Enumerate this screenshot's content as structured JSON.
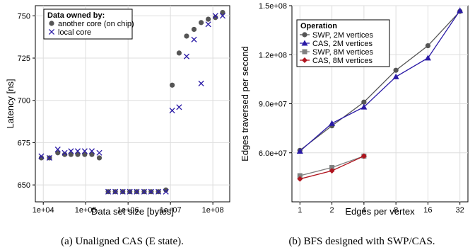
{
  "chart_data": [
    {
      "type": "scatter",
      "caption": "(a) Unaligned CAS (E state).",
      "xlabel": "Data set size [bytes]",
      "ylabel": "Latency [ns]",
      "x_scale": "log",
      "xlim": [
        6500,
        250000000
      ],
      "ylim": [
        640,
        756
      ],
      "xticks": [
        10000,
        100000,
        1000000,
        10000000,
        100000000
      ],
      "xtick_labels": [
        "1e+04",
        "1e+05",
        "1e+06",
        "1e+07",
        "1e+08"
      ],
      "yticks": [
        650,
        675,
        700,
        725,
        750
      ],
      "ytick_labels": [
        "650",
        "675",
        "700",
        "725",
        "750"
      ],
      "grid": true,
      "legend": {
        "title": "Data owned by:",
        "position": "top-left"
      },
      "series": [
        {
          "name": "another core (on chip)",
          "marker": "circle",
          "color": "#555555",
          "x": [
            9000,
            14000,
            22000,
            32000,
            45000,
            65000,
            95000,
            140000,
            210000,
            340000,
            500000,
            750000,
            1100000,
            1600000,
            2400000,
            3500000,
            5200000,
            7800000,
            11000000,
            16000000,
            24000000,
            36000000,
            53000000,
            78000000,
            115000000,
            170000000
          ],
          "y": [
            666,
            666,
            669,
            668,
            668,
            668,
            668,
            668,
            666,
            646,
            646,
            646,
            646,
            646,
            646,
            646,
            646,
            647,
            709,
            728,
            738,
            742,
            746,
            748,
            749,
            752
          ]
        },
        {
          "name": "local core",
          "marker": "x",
          "color": "#2a1aa6",
          "x": [
            9000,
            14000,
            22000,
            32000,
            45000,
            65000,
            95000,
            140000,
            210000,
            340000,
            500000,
            750000,
            1100000,
            1600000,
            2400000,
            3500000,
            5200000,
            7800000,
            11000000,
            16000000,
            24000000,
            36000000,
            53000000,
            78000000,
            115000000,
            170000000
          ],
          "y": [
            667,
            666,
            671,
            669,
            670,
            670,
            670,
            670,
            669,
            646,
            646,
            646,
            646,
            646,
            646,
            646,
            646,
            646,
            694,
            696,
            726,
            736,
            710,
            745,
            750,
            750
          ]
        }
      ]
    },
    {
      "type": "line",
      "caption": "(b) BFS designed with SWP/CAS.",
      "xlabel": "Edges per vertex",
      "ylabel": "Edges traversed per second",
      "x_scale": "log2",
      "categories": [
        1,
        2,
        4,
        8,
        16,
        32
      ],
      "xtick_labels": [
        "1",
        "2",
        "4",
        "8",
        "16",
        "32"
      ],
      "ylim": [
        30000000,
        150000000
      ],
      "yticks": [
        60000000,
        90000000,
        120000000,
        150000000
      ],
      "ytick_labels": [
        "6.0e+07",
        "9.0e+07",
        "1.2e+08",
        "1.5e+08"
      ],
      "grid": true,
      "legend": {
        "title": "Operation",
        "position": "top-left"
      },
      "series": [
        {
          "name": "SWP, 2M vertices",
          "marker": "circle",
          "color": "#555555",
          "x": [
            1,
            2,
            4,
            8,
            16,
            32
          ],
          "y": [
            61500000,
            76500000,
            91000000,
            110500000,
            125500000,
            146500000
          ]
        },
        {
          "name": "CAS, 2M vertices",
          "marker": "triangle",
          "color": "#2a1aa6",
          "x": [
            1,
            2,
            4,
            8,
            16,
            32
          ],
          "y": [
            61000000,
            78000000,
            88000000,
            106500000,
            118000000,
            147000000
          ]
        },
        {
          "name": "SWP, 8M vertices",
          "marker": "square",
          "color": "#808080",
          "x": [
            1,
            2,
            4
          ],
          "y": [
            46000000,
            51000000,
            58000000
          ]
        },
        {
          "name": "CAS, 8M vertices",
          "marker": "diamond",
          "color": "#b0141e",
          "x": [
            1,
            2,
            4
          ],
          "y": [
            44000000,
            49000000,
            58000000
          ]
        }
      ]
    }
  ]
}
